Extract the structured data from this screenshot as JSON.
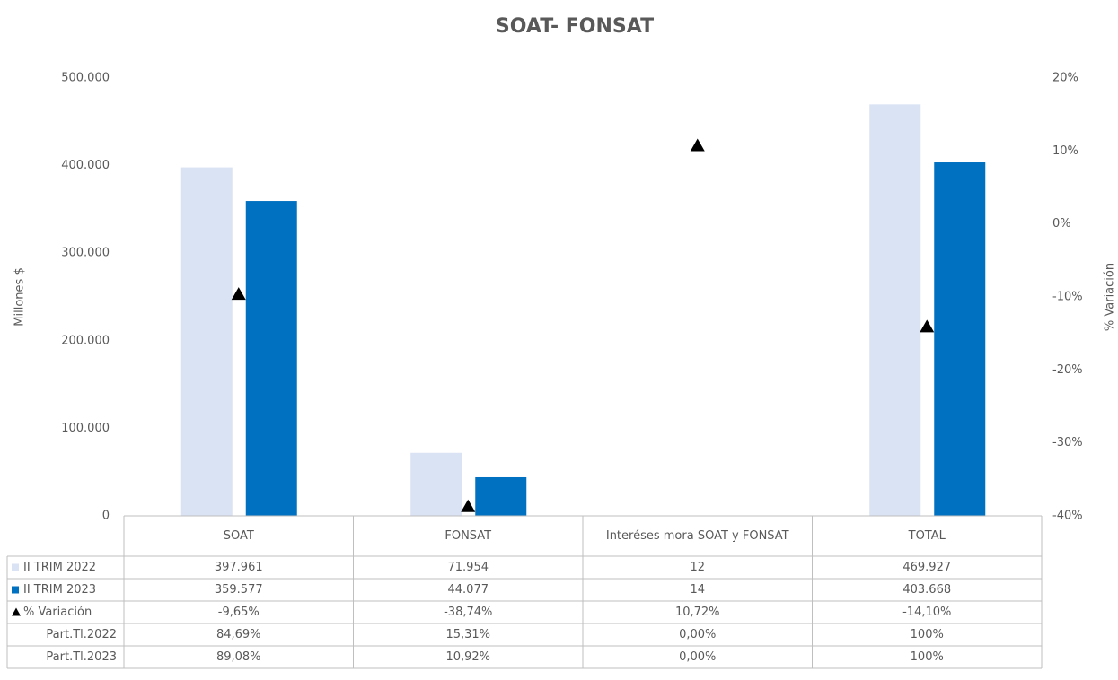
{
  "chart_data": {
    "type": "bar",
    "title": "SOAT- FONSAT",
    "y_label": "Millones $",
    "y2_label": "% Variación",
    "categories": [
      "SOAT",
      "FONSAT",
      "Interéses mora SOAT y FONSAT",
      "TOTAL"
    ],
    "series": [
      {
        "name": "II TRIM 2022",
        "color": "#dae3f3",
        "values": [
          397961,
          71954,
          12,
          469927
        ],
        "value_labels": [
          "397.961",
          "71.954",
          "12",
          "469.927"
        ]
      },
      {
        "name": "II TRIM 2023",
        "color": "#0070c0",
        "values": [
          359577,
          44077,
          14,
          403668
        ],
        "value_labels": [
          "359.577",
          "44.077",
          "14",
          "403.668"
        ]
      },
      {
        "name": "% Variación",
        "color": "#000000",
        "axis": "y2",
        "marker": "triangle",
        "values": [
          -9.65,
          -38.74,
          10.72,
          -14.1
        ],
        "value_labels": [
          "-9,65%",
          "-38,74%",
          "10,72%",
          "-14,10%"
        ]
      }
    ],
    "extra_rows": [
      {
        "name": "Part.Tl.2022",
        "labels": [
          "84,69%",
          "15,31%",
          "0,00%",
          "100%"
        ]
      },
      {
        "name": "Part.Tl.2023",
        "labels": [
          "89,08%",
          "10,92%",
          "0,00%",
          "100%"
        ]
      }
    ],
    "ylim": [
      0,
      500000
    ],
    "yticks": [
      0,
      {
        "value": 100000,
        "label": "100.000"
      },
      {
        "value": 200000,
        "label": "200.000"
      },
      {
        "value": 300000,
        "label": "300.000"
      },
      {
        "value": 400000,
        "label": "400.000"
      },
      {
        "value": 500000,
        "label": "500.000"
      }
    ],
    "y2lim": [
      -40,
      20
    ],
    "y2ticks": [
      {
        "value": -40,
        "label": "-40%"
      },
      {
        "value": -30,
        "label": "-30%"
      },
      {
        "value": -20,
        "label": "-20%"
      },
      {
        "value": -10,
        "label": "-10%"
      },
      {
        "value": 0,
        "label": "0%"
      },
      {
        "value": 10,
        "label": "10%"
      },
      {
        "value": 20,
        "label": "20%"
      }
    ]
  }
}
